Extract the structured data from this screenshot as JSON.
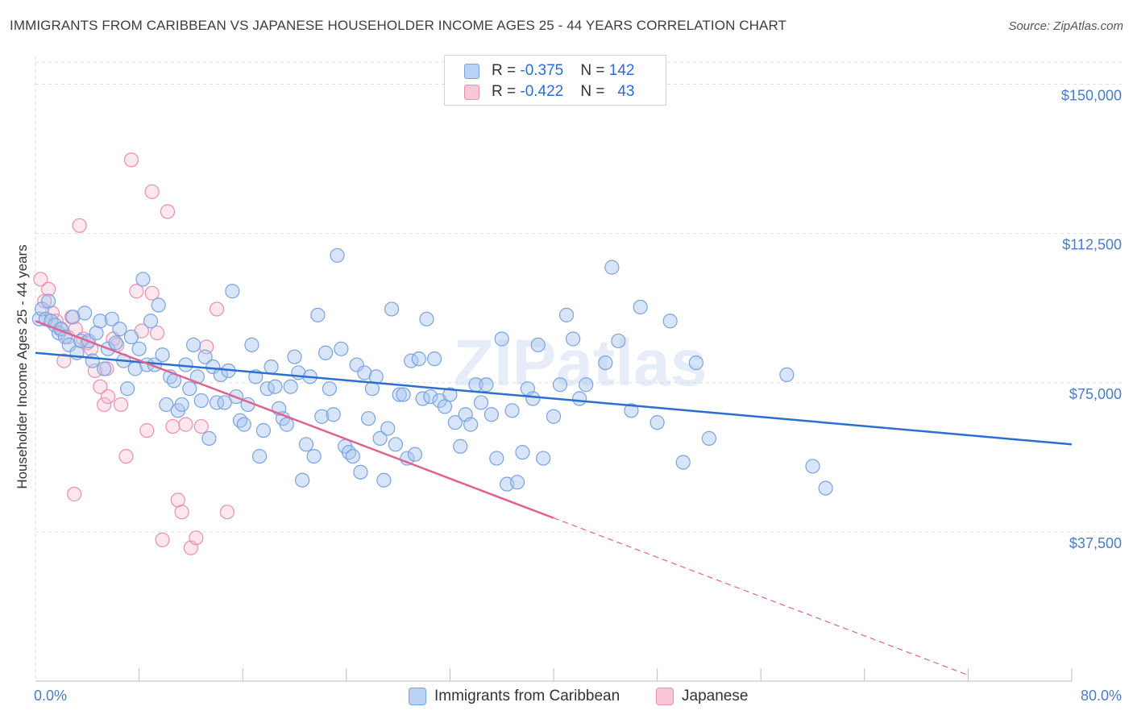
{
  "header": {
    "title": "IMMIGRANTS FROM CARIBBEAN VS JAPANESE HOUSEHOLDER INCOME AGES 25 - 44 YEARS CORRELATION CHART",
    "source": "Source: ZipAtlas.com"
  },
  "watermark": "ZIPatlas",
  "legend": {
    "rows": [
      {
        "r_label": "R = ",
        "r_value": "-0.375",
        "n_label": "N = ",
        "n_value": "142"
      },
      {
        "r_label": "R = ",
        "r_value": "-0.422",
        "n_label": "N = ",
        "n_value": "43"
      }
    ],
    "bottom": [
      "Immigrants from Caribbean",
      "Japanese"
    ]
  },
  "colors": {
    "blue_fill": "#a9c5ef",
    "blue_stroke": "#7aa3dd",
    "blue_line": "#2b6fcf",
    "pink_fill": "#f6b9cd",
    "pink_stroke": "#ea8eae",
    "pink_line": "#e0628f",
    "grid": "#dddddd",
    "tick_text": "#4a7cc6"
  },
  "chart_data": {
    "type": "scatter",
    "title": "IMMIGRANTS FROM CARIBBEAN VS JAPANESE HOUSEHOLDER INCOME AGES 25 - 44 YEARS CORRELATION CHART",
    "xlabel": "",
    "ylabel": "Householder Income Ages 25 - 44 years",
    "xlim": [
      0,
      80
    ],
    "ylim": [
      0,
      157000
    ],
    "x_ticks": [
      {
        "value": 0,
        "label": "0.0%"
      },
      {
        "value": 80,
        "label": "80.0%"
      }
    ],
    "y_ticks": [
      {
        "value": 37500,
        "label": "$37,500"
      },
      {
        "value": 75000,
        "label": "$75,000"
      },
      {
        "value": 112500,
        "label": "$112,500"
      },
      {
        "value": 150000,
        "label": "$150,000"
      }
    ],
    "grid": true,
    "series": [
      {
        "name": "Immigrants from Caribbean",
        "r": -0.375,
        "n": 142,
        "trend": {
          "x0": 0,
          "y0": 82500,
          "x1": 80,
          "y1": 59500
        },
        "points": [
          [
            0.3,
            91000
          ],
          [
            0.5,
            93500
          ],
          [
            0.8,
            91000
          ],
          [
            1.0,
            95500
          ],
          [
            1.2,
            90500
          ],
          [
            1.5,
            89500
          ],
          [
            1.8,
            87500
          ],
          [
            2.0,
            88500
          ],
          [
            2.3,
            86500
          ],
          [
            2.6,
            84500
          ],
          [
            2.9,
            91500
          ],
          [
            3.2,
            82500
          ],
          [
            3.5,
            85500
          ],
          [
            3.8,
            92500
          ],
          [
            4.1,
            85500
          ],
          [
            4.4,
            80500
          ],
          [
            4.7,
            87500
          ],
          [
            5.0,
            90500
          ],
          [
            5.3,
            78500
          ],
          [
            5.6,
            83500
          ],
          [
            5.9,
            91000
          ],
          [
            6.2,
            85000
          ],
          [
            6.5,
            88500
          ],
          [
            6.8,
            80500
          ],
          [
            7.1,
            73500
          ],
          [
            7.4,
            86500
          ],
          [
            7.7,
            78500
          ],
          [
            8.0,
            83500
          ],
          [
            8.3,
            101000
          ],
          [
            8.6,
            79500
          ],
          [
            8.9,
            90500
          ],
          [
            9.2,
            79500
          ],
          [
            9.5,
            94500
          ],
          [
            9.8,
            82000
          ],
          [
            10.1,
            69500
          ],
          [
            10.4,
            76500
          ],
          [
            10.7,
            75500
          ],
          [
            11.0,
            68000
          ],
          [
            11.3,
            69500
          ],
          [
            11.6,
            79500
          ],
          [
            11.9,
            73500
          ],
          [
            12.2,
            84500
          ],
          [
            12.5,
            76500
          ],
          [
            12.8,
            70500
          ],
          [
            13.1,
            81500
          ],
          [
            13.4,
            61000
          ],
          [
            13.7,
            79000
          ],
          [
            14.0,
            70000
          ],
          [
            14.3,
            77000
          ],
          [
            14.6,
            70000
          ],
          [
            14.9,
            78000
          ],
          [
            15.2,
            98000
          ],
          [
            15.5,
            71500
          ],
          [
            15.8,
            65500
          ],
          [
            16.1,
            64500
          ],
          [
            16.4,
            69500
          ],
          [
            16.7,
            84500
          ],
          [
            17.0,
            76500
          ],
          [
            17.3,
            56500
          ],
          [
            17.6,
            63000
          ],
          [
            17.9,
            73500
          ],
          [
            18.2,
            79000
          ],
          [
            18.5,
            74000
          ],
          [
            18.8,
            68500
          ],
          [
            19.1,
            66000
          ],
          [
            19.4,
            64500
          ],
          [
            19.7,
            74000
          ],
          [
            20.0,
            81500
          ],
          [
            20.3,
            77500
          ],
          [
            20.6,
            50500
          ],
          [
            20.9,
            59500
          ],
          [
            21.2,
            76500
          ],
          [
            21.5,
            56500
          ],
          [
            21.8,
            92000
          ],
          [
            22.1,
            66500
          ],
          [
            22.4,
            82500
          ],
          [
            22.7,
            73500
          ],
          [
            23.0,
            67000
          ],
          [
            23.3,
            107000
          ],
          [
            23.6,
            83500
          ],
          [
            23.9,
            59000
          ],
          [
            24.2,
            57500
          ],
          [
            24.5,
            56500
          ],
          [
            24.8,
            79500
          ],
          [
            25.1,
            52500
          ],
          [
            25.4,
            77500
          ],
          [
            25.7,
            66000
          ],
          [
            26.0,
            73500
          ],
          [
            26.3,
            76500
          ],
          [
            26.6,
            61000
          ],
          [
            26.9,
            50500
          ],
          [
            27.2,
            63500
          ],
          [
            27.5,
            93500
          ],
          [
            27.8,
            59500
          ],
          [
            28.1,
            72000
          ],
          [
            28.4,
            72000
          ],
          [
            28.7,
            56000
          ],
          [
            29.0,
            80500
          ],
          [
            29.3,
            57000
          ],
          [
            29.6,
            81000
          ],
          [
            29.9,
            71000
          ],
          [
            30.2,
            91000
          ],
          [
            30.5,
            71500
          ],
          [
            30.8,
            81000
          ],
          [
            31.2,
            70500
          ],
          [
            31.6,
            69000
          ],
          [
            32.0,
            72000
          ],
          [
            32.4,
            65000
          ],
          [
            32.8,
            59000
          ],
          [
            33.2,
            67000
          ],
          [
            33.6,
            64500
          ],
          [
            34.0,
            74500
          ],
          [
            34.4,
            70000
          ],
          [
            34.8,
            74500
          ],
          [
            35.2,
            67000
          ],
          [
            35.6,
            56000
          ],
          [
            36.0,
            86000
          ],
          [
            36.4,
            49500
          ],
          [
            36.8,
            68000
          ],
          [
            37.2,
            50000
          ],
          [
            37.6,
            57500
          ],
          [
            38.0,
            73500
          ],
          [
            38.4,
            71000
          ],
          [
            38.8,
            84500
          ],
          [
            39.2,
            56000
          ],
          [
            40.0,
            66500
          ],
          [
            40.5,
            74500
          ],
          [
            41.0,
            92000
          ],
          [
            41.5,
            86000
          ],
          [
            42.0,
            71000
          ],
          [
            42.5,
            74500
          ],
          [
            44.0,
            80000
          ],
          [
            44.5,
            104000
          ],
          [
            45.0,
            85500
          ],
          [
            46.0,
            68000
          ],
          [
            46.7,
            94000
          ],
          [
            48.0,
            65000
          ],
          [
            49.0,
            90500
          ],
          [
            50.0,
            55000
          ],
          [
            51.0,
            80000
          ],
          [
            52.0,
            61000
          ],
          [
            58.0,
            77000
          ],
          [
            60.0,
            54000
          ],
          [
            61.0,
            48500
          ]
        ]
      },
      {
        "name": "Japanese",
        "r": -0.422,
        "n": 43,
        "trend": {
          "x0": 0,
          "y0": 90500,
          "x1": 40,
          "y1": 41000,
          "dash_x1": 72,
          "dash_y1": 1500
        },
        "points": [
          [
            0.4,
            101000
          ],
          [
            0.7,
            95500
          ],
          [
            1.0,
            98500
          ],
          [
            1.3,
            92500
          ],
          [
            1.6,
            90500
          ],
          [
            1.9,
            88500
          ],
          [
            2.2,
            80500
          ],
          [
            2.5,
            86500
          ],
          [
            2.8,
            91500
          ],
          [
            3.1,
            88500
          ],
          [
            3.4,
            114500
          ],
          [
            3.7,
            86000
          ],
          [
            4.0,
            85000
          ],
          [
            4.3,
            83500
          ],
          [
            4.6,
            78000
          ],
          [
            5.0,
            74000
          ],
          [
            5.3,
            69500
          ],
          [
            5.6,
            71500
          ],
          [
            6.0,
            86000
          ],
          [
            6.3,
            84500
          ],
          [
            6.6,
            69500
          ],
          [
            7.0,
            56500
          ],
          [
            7.4,
            131000
          ],
          [
            7.8,
            98000
          ],
          [
            8.2,
            88000
          ],
          [
            8.6,
            63000
          ],
          [
            9.0,
            123000
          ],
          [
            9.4,
            87500
          ],
          [
            9.8,
            35500
          ],
          [
            10.2,
            118000
          ],
          [
            10.6,
            64000
          ],
          [
            11.0,
            45500
          ],
          [
            11.3,
            42500
          ],
          [
            11.6,
            64500
          ],
          [
            12.0,
            33500
          ],
          [
            12.4,
            36000
          ],
          [
            12.8,
            64000
          ],
          [
            13.2,
            84000
          ],
          [
            14.0,
            93500
          ],
          [
            14.8,
            42500
          ],
          [
            3.0,
            47000
          ],
          [
            5.5,
            78500
          ],
          [
            9.0,
            97500
          ]
        ]
      }
    ]
  }
}
